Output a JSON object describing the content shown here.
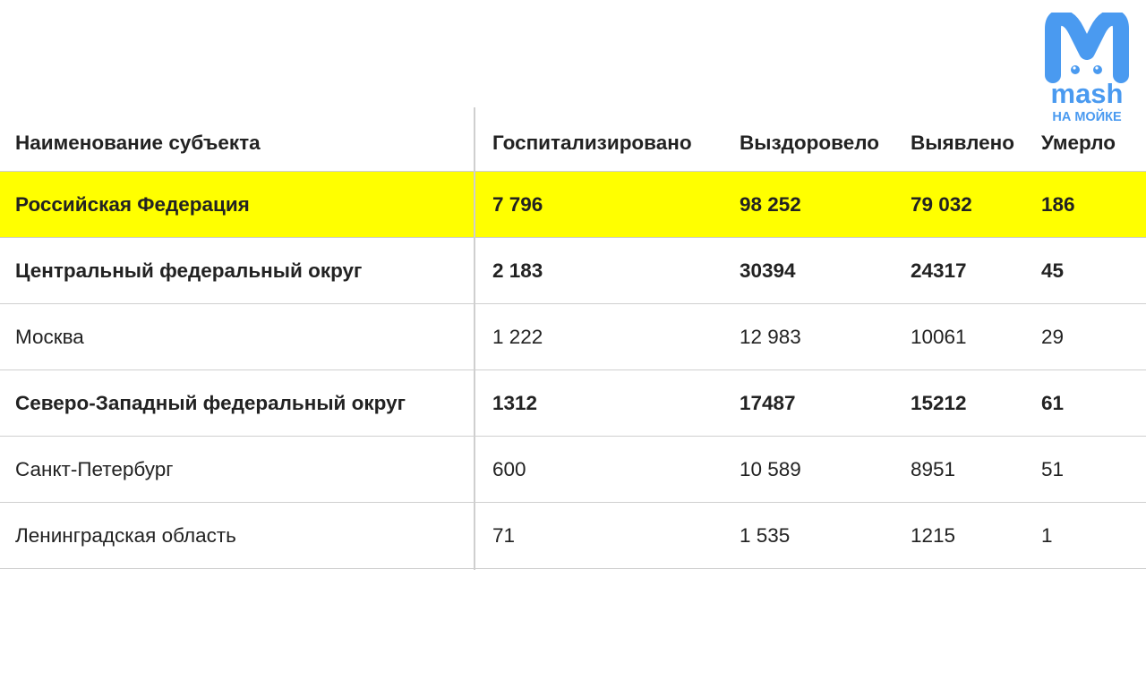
{
  "logo": {
    "brand": "mash",
    "subtitle": "НА МОЙКЕ",
    "color": "#4a9af0"
  },
  "colors": {
    "highlight": "#ffff00",
    "text": "#222222",
    "grid": "#cfcfcf"
  },
  "table": {
    "columns": [
      "Наименование субъекта",
      "Госпитализировано",
      "Выздоровело",
      "Выявлено",
      "Умерло"
    ],
    "rows": [
      {
        "cells": [
          "Российская Федерация",
          "7 796",
          "98 252",
          "79 032",
          "186"
        ],
        "bold": true,
        "highlight": true
      },
      {
        "cells": [
          "Центральный федеральный округ",
          "2 183",
          "30394",
          "24317",
          "45"
        ],
        "bold": true,
        "highlight": false
      },
      {
        "cells": [
          "Москва",
          "1 222",
          "12 983",
          "10061",
          "29"
        ],
        "bold": false,
        "highlight": false
      },
      {
        "cells": [
          "Северо-Западный федеральный округ",
          "1312",
          "17487",
          "15212",
          "61"
        ],
        "bold": true,
        "highlight": false
      },
      {
        "cells": [
          "Санкт-Петербург",
          "600",
          "10 589",
          "8951",
          "51"
        ],
        "bold": false,
        "highlight": false
      },
      {
        "cells": [
          "Ленинградская область",
          "71",
          "1 535",
          "1215",
          "1"
        ],
        "bold": false,
        "highlight": false
      }
    ]
  }
}
